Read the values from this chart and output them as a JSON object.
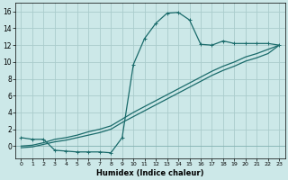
{
  "xlabel": "Humidex (Indice chaleur)",
  "ylabel": "",
  "bg_color": "#cce8e8",
  "grid_color": "#aacccc",
  "line_color": "#1a6b6b",
  "xlim": [
    -0.5,
    23.5
  ],
  "ylim": [
    -1.5,
    17.0
  ],
  "xticks": [
    0,
    1,
    2,
    3,
    4,
    5,
    6,
    7,
    8,
    9,
    10,
    11,
    12,
    13,
    14,
    15,
    16,
    17,
    18,
    19,
    20,
    21,
    22,
    23
  ],
  "yticks": [
    0,
    2,
    4,
    6,
    8,
    10,
    12,
    14,
    16
  ],
  "line1_x": [
    0,
    1,
    2,
    3,
    4,
    5,
    6,
    7,
    8,
    9,
    10,
    11,
    12,
    13,
    14,
    15,
    16,
    17,
    18,
    19,
    20,
    21,
    22,
    23
  ],
  "line1_y": [
    1.0,
    0.8,
    0.8,
    -0.5,
    -0.6,
    -0.7,
    -0.7,
    -0.7,
    -0.8,
    1.0,
    9.7,
    12.8,
    14.6,
    15.8,
    15.9,
    15.0,
    12.1,
    12.0,
    12.5,
    12.2,
    12.2,
    12.2,
    12.2,
    12.0
  ],
  "line2_x": [
    0,
    1,
    2,
    3,
    4,
    5,
    6,
    7,
    8,
    9,
    10,
    11,
    12,
    13,
    14,
    15,
    16,
    17,
    18,
    19,
    20,
    21,
    22,
    23
  ],
  "line2_y": [
    0.0,
    0.1,
    0.4,
    0.8,
    1.0,
    1.3,
    1.7,
    2.0,
    2.4,
    3.2,
    4.0,
    4.7,
    5.4,
    6.1,
    6.8,
    7.5,
    8.2,
    8.9,
    9.5,
    10.0,
    10.6,
    11.0,
    11.5,
    12.0
  ],
  "line3_x": [
    0,
    1,
    2,
    3,
    4,
    5,
    6,
    7,
    8,
    9,
    10,
    11,
    12,
    13,
    14,
    15,
    16,
    17,
    18,
    19,
    20,
    21,
    22,
    23
  ],
  "line3_y": [
    -0.2,
    -0.1,
    0.2,
    0.5,
    0.7,
    1.0,
    1.3,
    1.6,
    2.0,
    2.8,
    3.5,
    4.2,
    4.9,
    5.6,
    6.3,
    7.0,
    7.7,
    8.4,
    9.0,
    9.5,
    10.1,
    10.5,
    11.0,
    12.0
  ],
  "markersize": 3,
  "linewidth": 0.9
}
